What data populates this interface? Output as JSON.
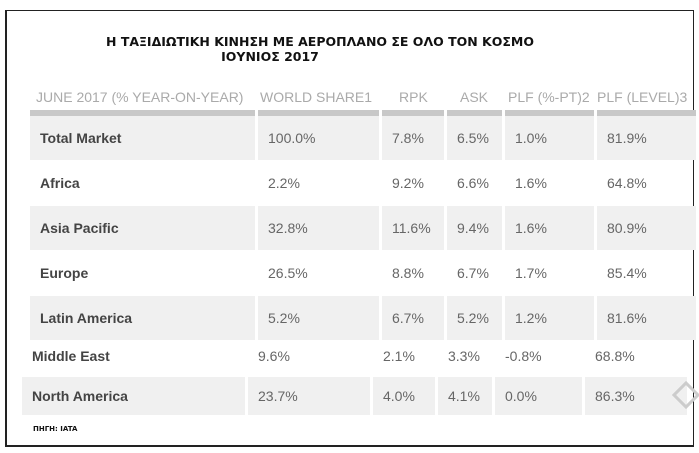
{
  "title_line1": "Η ΤΑΞΙΔΙΩΤΙΚΗ ΚΙΝΗΣΗ ΜΕ ΑΕΡΟΠΛΑΝΟ ΣΕ ΟΛΟ ΤΟΝ ΚΟΣΜΟ",
  "title_line2": "ΙΟΥΝΙΟΣ 2017",
  "headers": [
    "JUNE 2017 (% YEAR-ON-YEAR)",
    "WORLD SHARE1",
    "RPK",
    "ASK",
    "PLF (%-PT)2",
    "PLF (LEVEL)3"
  ],
  "rows": [
    [
      "Total Market",
      "100.0%",
      "7.8%",
      "6.5%",
      "1.0%",
      "81.9%"
    ],
    [
      "Africa",
      "2.2%",
      "9.2%",
      "6.6%",
      "1.6%",
      "64.8%"
    ],
    [
      "Asia Pacific",
      "32.8%",
      "11.6%",
      "9.4%",
      "1.6%",
      "80.9%"
    ],
    [
      "Europe",
      "26.5%",
      "8.8%",
      "6.7%",
      "1.7%",
      "85.4%"
    ],
    [
      "Latin America",
      "5.2%",
      "6.7%",
      "5.2%",
      "1.2%",
      "81.6%"
    ],
    [
      "Middle East",
      "9.6%",
      "2.1%",
      "3.3%",
      "-0.8%",
      "68.8%"
    ],
    [
      "North America",
      "23.7%",
      "4.0%",
      "4.1%",
      "0.0%",
      "86.3%"
    ]
  ],
  "source": "ΠΗΓΗ: IATA"
}
